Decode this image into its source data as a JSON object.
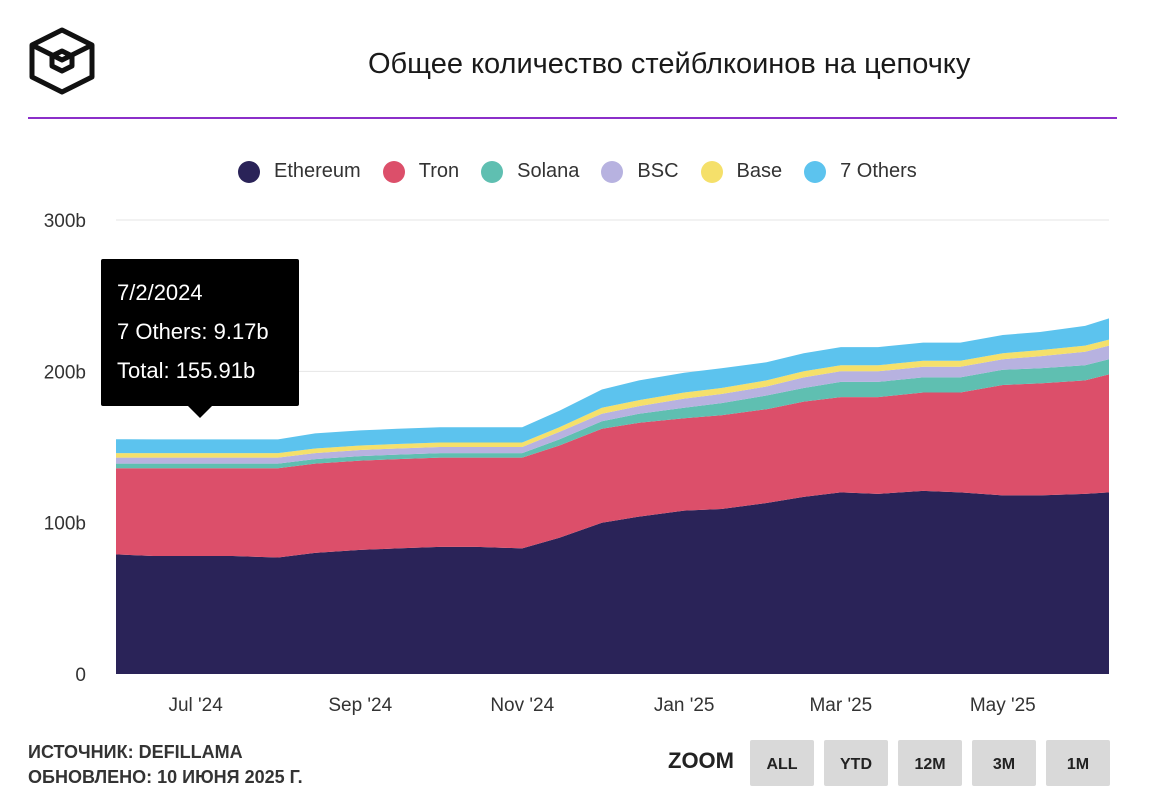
{
  "header": {
    "logo_icon": "cube-logo-icon",
    "title": "Общее количество стейблкоинов на цепочку"
  },
  "chart_data": {
    "type": "area",
    "stacked": true,
    "title": "Общее количество стейблкоинов на цепочку",
    "xlabel": "",
    "ylabel": "",
    "ylim": [
      0,
      300
    ],
    "y_ticks": [
      "0",
      "100b",
      "200b",
      "300b"
    ],
    "y_tick_values": [
      0,
      100,
      200,
      300
    ],
    "x_range": [
      "2024-06-01",
      "2025-06-10"
    ],
    "x_ticks": [
      {
        "label": "Jul '24",
        "date": "2024-07-01"
      },
      {
        "label": "Sep '24",
        "date": "2024-09-01"
      },
      {
        "label": "Nov '24",
        "date": "2024-11-01"
      },
      {
        "label": "Jan '25",
        "date": "2025-01-01"
      },
      {
        "label": "Mar '25",
        "date": "2025-03-01"
      },
      {
        "label": "May '25",
        "date": "2025-05-01"
      }
    ],
    "grid": true,
    "legend_position": "top",
    "x": [
      "2024-06-01",
      "2024-06-15",
      "2024-07-01",
      "2024-07-15",
      "2024-08-01",
      "2024-08-15",
      "2024-09-01",
      "2024-09-15",
      "2024-10-01",
      "2024-10-15",
      "2024-11-01",
      "2024-11-15",
      "2024-12-01",
      "2024-12-15",
      "2025-01-01",
      "2025-01-15",
      "2025-02-01",
      "2025-02-15",
      "2025-03-01",
      "2025-03-15",
      "2025-04-01",
      "2025-04-15",
      "2025-05-01",
      "2025-05-15",
      "2025-06-01",
      "2025-06-10"
    ],
    "series": [
      {
        "name": "Ethereum",
        "color": "#2a2358",
        "values": [
          79,
          78,
          78,
          78,
          77,
          80,
          82,
          83,
          84,
          84,
          83,
          90,
          100,
          104,
          108,
          109,
          113,
          117,
          120,
          119,
          121,
          120,
          118,
          118,
          119,
          120
        ]
      },
      {
        "name": "Tron",
        "color": "#dc4f6a",
        "values": [
          57,
          58,
          58,
          58,
          59,
          59,
          59,
          59,
          59,
          59,
          60,
          61,
          62,
          62,
          61,
          62,
          62,
          63,
          63,
          64,
          65,
          66,
          73,
          74,
          75,
          78
        ]
      },
      {
        "name": "Solana",
        "color": "#5fbfb1",
        "values": [
          3,
          3,
          3,
          3,
          3,
          3,
          3,
          3,
          3,
          3,
          3,
          4,
          5,
          6,
          7,
          8,
          9,
          9,
          10,
          10,
          10,
          10,
          10,
          10,
          10,
          10
        ]
      },
      {
        "name": "BSC",
        "color": "#b7b2e0",
        "values": [
          4,
          4,
          4,
          4,
          4,
          4,
          4,
          4,
          4,
          4,
          4,
          5,
          5,
          5,
          6,
          6,
          6,
          7,
          7,
          7,
          7,
          7,
          7,
          8,
          9,
          9
        ]
      },
      {
        "name": "Base",
        "color": "#f5e06a",
        "values": [
          3,
          3,
          3,
          3,
          3,
          3,
          3,
          3,
          3,
          3,
          3,
          3,
          4,
          4,
          4,
          4,
          4,
          4,
          4,
          4,
          4,
          4,
          4,
          4,
          4,
          4
        ]
      },
      {
        "name": "7 Others",
        "color": "#5cc3ee",
        "values": [
          9.17,
          9,
          9,
          9,
          9,
          10,
          10,
          10,
          10,
          10,
          10,
          11,
          12,
          13,
          13,
          13,
          12,
          12,
          12,
          12,
          12,
          12,
          12,
          12,
          13,
          14
        ]
      }
    ],
    "tooltip": {
      "date": "7/2/2024",
      "line1": "7 Others: 9.17b",
      "line2": "Total: 155.91b"
    }
  },
  "footer": {
    "source": "ИСТОЧНИК: DEFILLAMA",
    "updated": "ОБНОВЛЕНО: 10 ИЮНЯ 2025 Г."
  },
  "zoom": {
    "label": "ZOOM",
    "buttons": [
      "ALL",
      "YTD",
      "12M",
      "3M",
      "1M"
    ]
  }
}
